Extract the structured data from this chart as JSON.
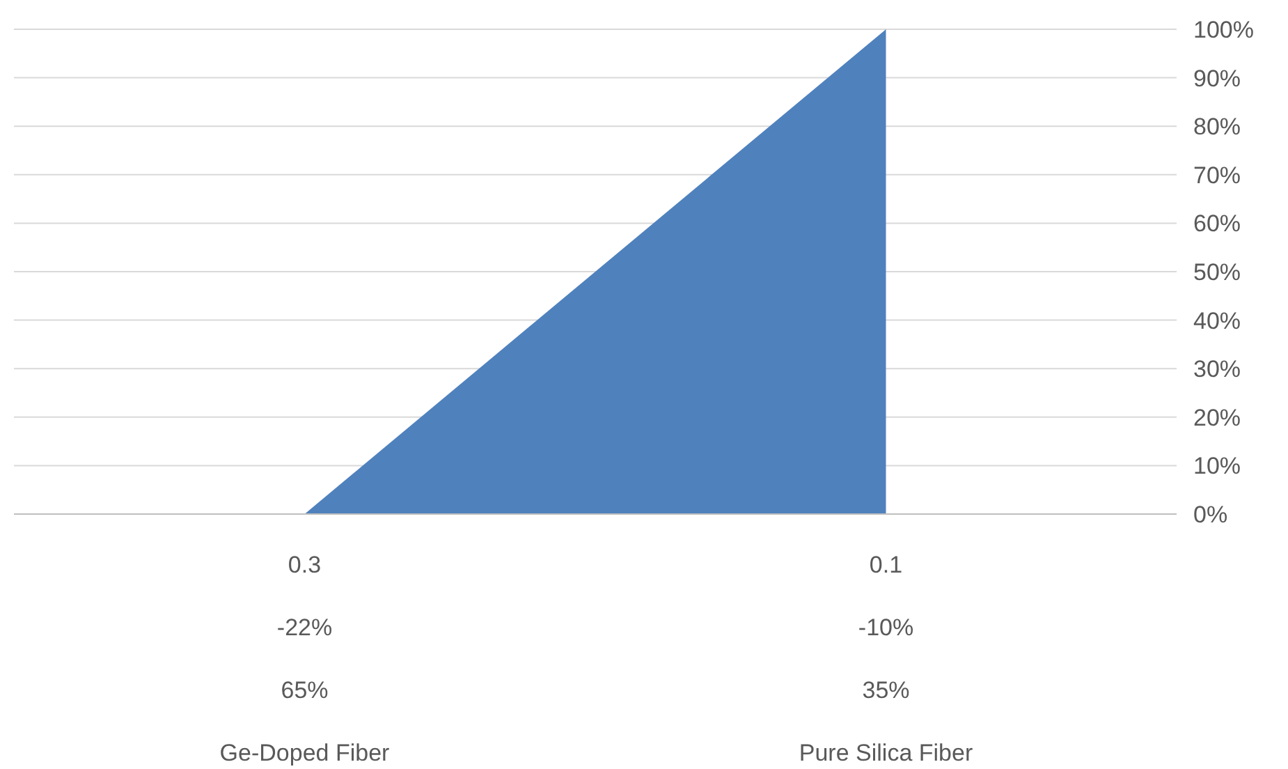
{
  "chart_data": {
    "type": "area",
    "categories": [
      "0.3\n-22%\n65%\nGe-Doped Fiber",
      "0.1\n-10%\n35%\nPure Silica Fiber"
    ],
    "series": [
      {
        "color": "#4f81bd",
        "values": [
          0,
          100
        ]
      }
    ],
    "ylim": [
      0,
      100
    ],
    "yticks": [
      {
        "value": 0,
        "label": "0%"
      },
      {
        "value": 10,
        "label": "10%"
      },
      {
        "value": 20,
        "label": "20%"
      },
      {
        "value": 30,
        "label": "30%"
      },
      {
        "value": 40,
        "label": "40%"
      },
      {
        "value": 50,
        "label": "50%"
      },
      {
        "value": 60,
        "label": "60%"
      },
      {
        "value": 70,
        "label": "70%"
      },
      {
        "value": 80,
        "label": "80%"
      },
      {
        "value": 90,
        "label": "90%"
      },
      {
        "value": 100,
        "label": "100%"
      }
    ],
    "grid": "y"
  }
}
